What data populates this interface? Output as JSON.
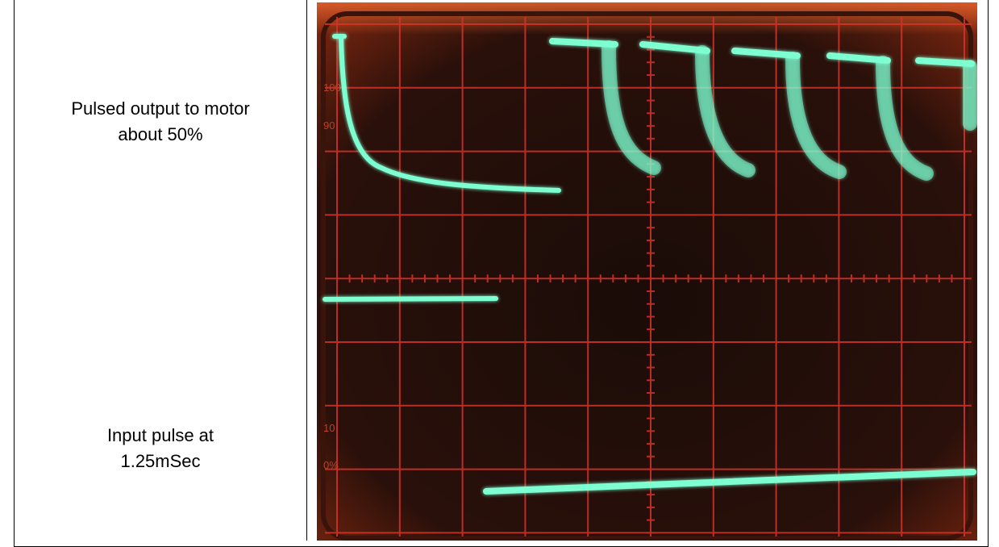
{
  "table": {
    "rows": [
      {
        "lines": [
          "Pulsed output to motor",
          "about 50%"
        ]
      },
      {
        "lines": [
          "Input pulse at",
          "1.25mSec"
        ]
      }
    ]
  },
  "scope": {
    "labels": [
      "100",
      "90",
      "10",
      "0%"
    ]
  }
}
